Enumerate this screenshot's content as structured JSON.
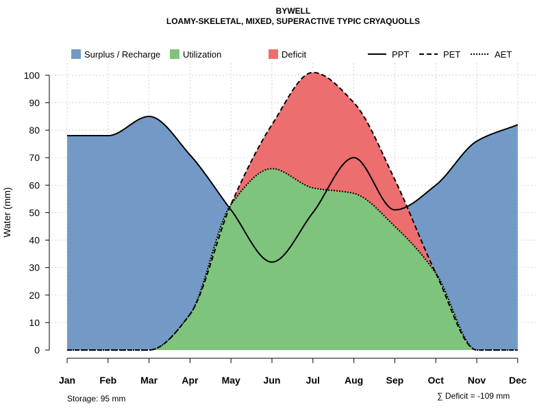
{
  "chart_data": {
    "type": "area",
    "title": "BYWELL",
    "subtitle": "LOAMY-SKELETAL, MIXED, SUPERACTIVE TYPIC CRYAQUOLLS",
    "ylabel": "Water (mm)",
    "xlabel": "",
    "ylim": [
      0,
      105
    ],
    "yticks": [
      0,
      10,
      20,
      30,
      40,
      50,
      60,
      70,
      80,
      90,
      100
    ],
    "categories": [
      "Jan",
      "Feb",
      "Mar",
      "Apr",
      "May",
      "Jun",
      "Jul",
      "Aug",
      "Sep",
      "Oct",
      "Nov",
      "Dec"
    ],
    "grid": true,
    "legend": {
      "placement": "top",
      "fills": [
        {
          "label": "Surplus / Recharge",
          "color": "#7399c6"
        },
        {
          "label": "Utilization",
          "color": "#7fc47c"
        },
        {
          "label": "Deficit",
          "color": "#ec6e6e"
        }
      ],
      "lines": [
        {
          "label": "PPT",
          "style": "solid"
        },
        {
          "label": "PET",
          "style": "dashed"
        },
        {
          "label": "AET",
          "style": "dotted"
        }
      ]
    },
    "series": [
      {
        "name": "PPT",
        "values": [
          78,
          78,
          85,
          71,
          51,
          32,
          50,
          70,
          51,
          60,
          76,
          82
        ]
      },
      {
        "name": "PET",
        "values": [
          0,
          0,
          0,
          13,
          53,
          82,
          101,
          90,
          62,
          28,
          0,
          0
        ]
      },
      {
        "name": "AET",
        "values": [
          0,
          0,
          0,
          13,
          53,
          66,
          59,
          57,
          45,
          28,
          0,
          0
        ]
      }
    ],
    "annotations": {
      "storage": "Storage: 95 mm",
      "deficit": "∑ Deficit = -109 mm"
    }
  }
}
